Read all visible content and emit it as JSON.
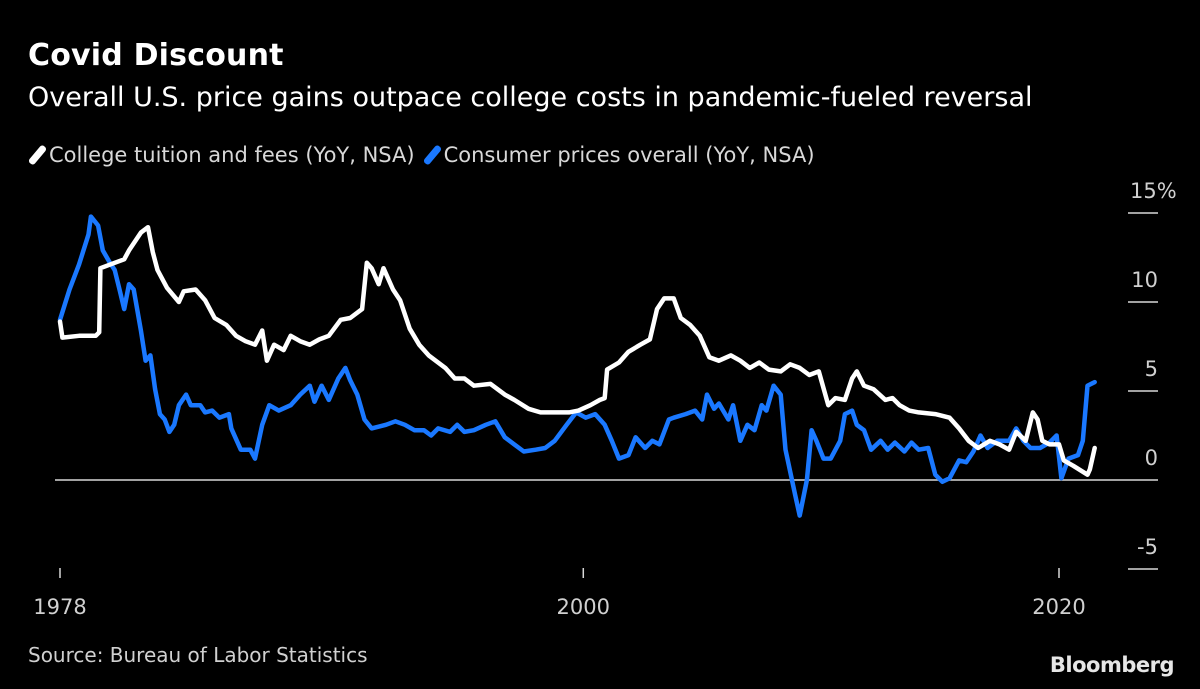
{
  "chart_data": {
    "type": "line",
    "title": "Covid Discount",
    "subtitle": "Overall U.S. price gains outpace college costs in pandemic-fueled reversal",
    "xlabel": "",
    "ylabel": "",
    "xlim": [
      1978,
      2022
    ],
    "ylim": [
      -5,
      15
    ],
    "x_ticks": [
      {
        "value": 1978,
        "label": "1978"
      },
      {
        "value": 2000,
        "label": "2000"
      },
      {
        "value": 2020,
        "label": "2020"
      }
    ],
    "y_ticks": [
      {
        "value": 15,
        "label": "15%"
      },
      {
        "value": 10,
        "label": "10"
      },
      {
        "value": 5,
        "label": "5"
      },
      {
        "value": 0,
        "label": "0"
      },
      {
        "value": -5,
        "label": "-5"
      }
    ],
    "legend_placement": "top-left",
    "series": [
      {
        "name": "College tuition and fees (YoY, NSA)",
        "color": "#ffffff",
        "x": [
          1978.0,
          1978.1,
          1978.8,
          1979.5,
          1979.65,
          1979.7,
          1980.3,
          1980.7,
          1980.9,
          1981.4,
          1981.7,
          1981.9,
          1982.1,
          1982.5,
          1983.0,
          1983.2,
          1983.7,
          1984.1,
          1984.5,
          1985.0,
          1985.4,
          1985.8,
          1986.2,
          1986.5,
          1986.7,
          1987.0,
          1987.4,
          1987.7,
          1988.1,
          1988.5,
          1988.9,
          1989.3,
          1989.8,
          1990.2,
          1990.7,
          1990.9,
          1991.1,
          1991.4,
          1991.6,
          1992.0,
          1992.3,
          1992.7,
          1993.1,
          1993.5,
          1994.2,
          1994.6,
          1995.0,
          1995.4,
          1996.1,
          1996.7,
          1997.1,
          1997.7,
          1998.2,
          1998.8,
          1999.4,
          1999.8,
          2000.3,
          2000.7,
          2000.9,
          2001.0,
          2001.5,
          2001.9,
          2002.4,
          2002.8,
          2003.1,
          2003.4,
          2003.8,
          2004.1,
          2004.5,
          2004.9,
          2005.3,
          2005.7,
          2006.2,
          2006.6,
          2007.0,
          2007.4,
          2007.8,
          2008.3,
          2008.7,
          2009.1,
          2009.5,
          2009.9,
          2010.3,
          2010.6,
          2011.0,
          2011.3,
          2011.5,
          2011.8,
          2012.2,
          2012.7,
          2013.0,
          2013.3,
          2013.7,
          2014.1,
          2014.8,
          2015.4,
          2015.8,
          2016.2,
          2016.6,
          2017.1,
          2017.5,
          2017.9,
          2018.2,
          2018.6,
          2018.9,
          2019.1,
          2019.3,
          2019.6,
          2020.0,
          2020.2,
          2020.6,
          2021.2,
          2021.3,
          2021.5
        ],
        "y": [
          8.9,
          8.0,
          8.1,
          8.1,
          8.3,
          11.9,
          12.2,
          12.4,
          12.9,
          13.9,
          14.2,
          12.8,
          11.8,
          10.8,
          10.0,
          10.6,
          10.7,
          10.1,
          9.1,
          8.7,
          8.1,
          7.8,
          7.6,
          8.4,
          6.7,
          7.6,
          7.3,
          8.1,
          7.8,
          7.6,
          7.9,
          8.1,
          9.0,
          9.1,
          9.6,
          12.2,
          11.9,
          11.0,
          11.9,
          10.7,
          10.1,
          8.5,
          7.6,
          7.0,
          6.3,
          5.7,
          5.7,
          5.3,
          5.4,
          4.8,
          4.5,
          4.0,
          3.8,
          3.8,
          3.8,
          3.9,
          4.2,
          4.5,
          4.6,
          6.2,
          6.6,
          7.2,
          7.6,
          7.9,
          9.6,
          10.2,
          10.2,
          9.1,
          8.7,
          8.1,
          6.9,
          6.7,
          7.0,
          6.7,
          6.3,
          6.6,
          6.2,
          6.1,
          6.5,
          6.3,
          5.9,
          6.1,
          4.2,
          4.6,
          4.5,
          5.7,
          6.1,
          5.3,
          5.1,
          4.5,
          4.6,
          4.2,
          3.9,
          3.8,
          3.7,
          3.5,
          2.9,
          2.2,
          1.8,
          2.2,
          2.0,
          1.7,
          2.7,
          2.2,
          3.8,
          3.4,
          2.2,
          2.0,
          2.0,
          1.1,
          0.8,
          0.3,
          0.6,
          1.8
        ]
      },
      {
        "name": "Consumer prices overall (YoY, NSA)",
        "color": "#1a78ff",
        "x": [
          1978.0,
          1978.4,
          1978.8,
          1979.2,
          1979.3,
          1979.6,
          1979.8,
          1980.1,
          1980.3,
          1980.5,
          1980.7,
          1980.9,
          1981.1,
          1981.4,
          1981.6,
          1981.8,
          1982.0,
          1982.2,
          1982.4,
          1982.6,
          1982.8,
          1983.0,
          1983.3,
          1983.5,
          1983.9,
          1984.1,
          1984.4,
          1984.7,
          1985.1,
          1985.2,
          1985.6,
          1986.0,
          1986.2,
          1986.5,
          1986.8,
          1987.2,
          1987.7,
          1988.1,
          1988.5,
          1988.7,
          1989.0,
          1989.3,
          1989.7,
          1990.0,
          1990.2,
          1990.5,
          1990.8,
          1991.1,
          1991.7,
          1992.1,
          1992.5,
          1992.9,
          1993.3,
          1993.6,
          1993.9,
          1994.4,
          1994.7,
          1995.0,
          1995.4,
          1995.9,
          1996.3,
          1996.7,
          1997.1,
          1997.5,
          1998.0,
          1998.4,
          1998.8,
          1999.3,
          1999.7,
          2000.1,
          2000.5,
          2000.9,
          2001.2,
          2001.5,
          2001.9,
          2002.2,
          2002.6,
          2002.9,
          2003.2,
          2003.6,
          2003.8,
          2004.3,
          2004.7,
          2005.0,
          2005.2,
          2005.5,
          2005.7,
          2006.1,
          2006.3,
          2006.6,
          2006.9,
          2007.2,
          2007.5,
          2007.7,
          2008.0,
          2008.3,
          2008.5,
          2008.9,
          2009.1,
          2009.4,
          2009.6,
          2009.8,
          2010.1,
          2010.4,
          2010.8,
          2011.0,
          2011.3,
          2011.5,
          2011.8,
          2012.1,
          2012.5,
          2012.8,
          2013.1,
          2013.5,
          2013.8,
          2014.1,
          2014.5,
          2014.8,
          2015.1,
          2015.4,
          2015.8,
          2016.1,
          2016.4,
          2016.7,
          2017.0,
          2017.4,
          2017.9,
          2018.2,
          2018.5,
          2018.8,
          2019.2,
          2019.6,
          2019.9,
          2020.1,
          2020.4,
          2020.8,
          2021.0,
          2021.2,
          2021.5
        ],
        "y": [
          9.0,
          10.7,
          12.1,
          13.8,
          14.8,
          14.3,
          12.9,
          12.2,
          11.8,
          10.7,
          9.6,
          11.0,
          10.7,
          8.4,
          6.7,
          7.0,
          5.1,
          3.7,
          3.4,
          2.7,
          3.1,
          4.2,
          4.8,
          4.2,
          4.2,
          3.8,
          3.9,
          3.5,
          3.7,
          2.9,
          1.7,
          1.7,
          1.2,
          3.1,
          4.2,
          3.9,
          4.2,
          4.8,
          5.3,
          4.4,
          5.3,
          4.5,
          5.7,
          6.3,
          5.6,
          4.8,
          3.4,
          2.9,
          3.1,
          3.3,
          3.1,
          2.8,
          2.8,
          2.5,
          2.9,
          2.7,
          3.1,
          2.7,
          2.8,
          3.1,
          3.3,
          2.4,
          2.0,
          1.6,
          1.7,
          1.8,
          2.2,
          3.1,
          3.8,
          3.5,
          3.7,
          3.1,
          2.2,
          1.2,
          1.4,
          2.4,
          1.8,
          2.2,
          2.0,
          3.4,
          3.5,
          3.7,
          3.9,
          3.4,
          4.8,
          4.0,
          4.3,
          3.4,
          4.2,
          2.2,
          3.1,
          2.8,
          4.2,
          3.9,
          5.3,
          4.8,
          1.7,
          -0.8,
          -2.0,
          0.0,
          2.8,
          2.2,
          1.2,
          1.2,
          2.2,
          3.7,
          3.9,
          3.1,
          2.8,
          1.7,
          2.2,
          1.7,
          2.1,
          1.6,
          2.1,
          1.7,
          1.8,
          0.3,
          -0.1,
          0.1,
          1.1,
          1.0,
          1.6,
          2.5,
          1.8,
          2.2,
          2.2,
          2.9,
          2.2,
          1.8,
          1.8,
          2.1,
          2.5,
          0.1,
          1.2,
          1.4,
          2.2,
          5.3,
          5.5
        ]
      }
    ]
  },
  "footer": {
    "source": "Source: Bureau of Labor Statistics",
    "logo": "Bloomberg"
  }
}
